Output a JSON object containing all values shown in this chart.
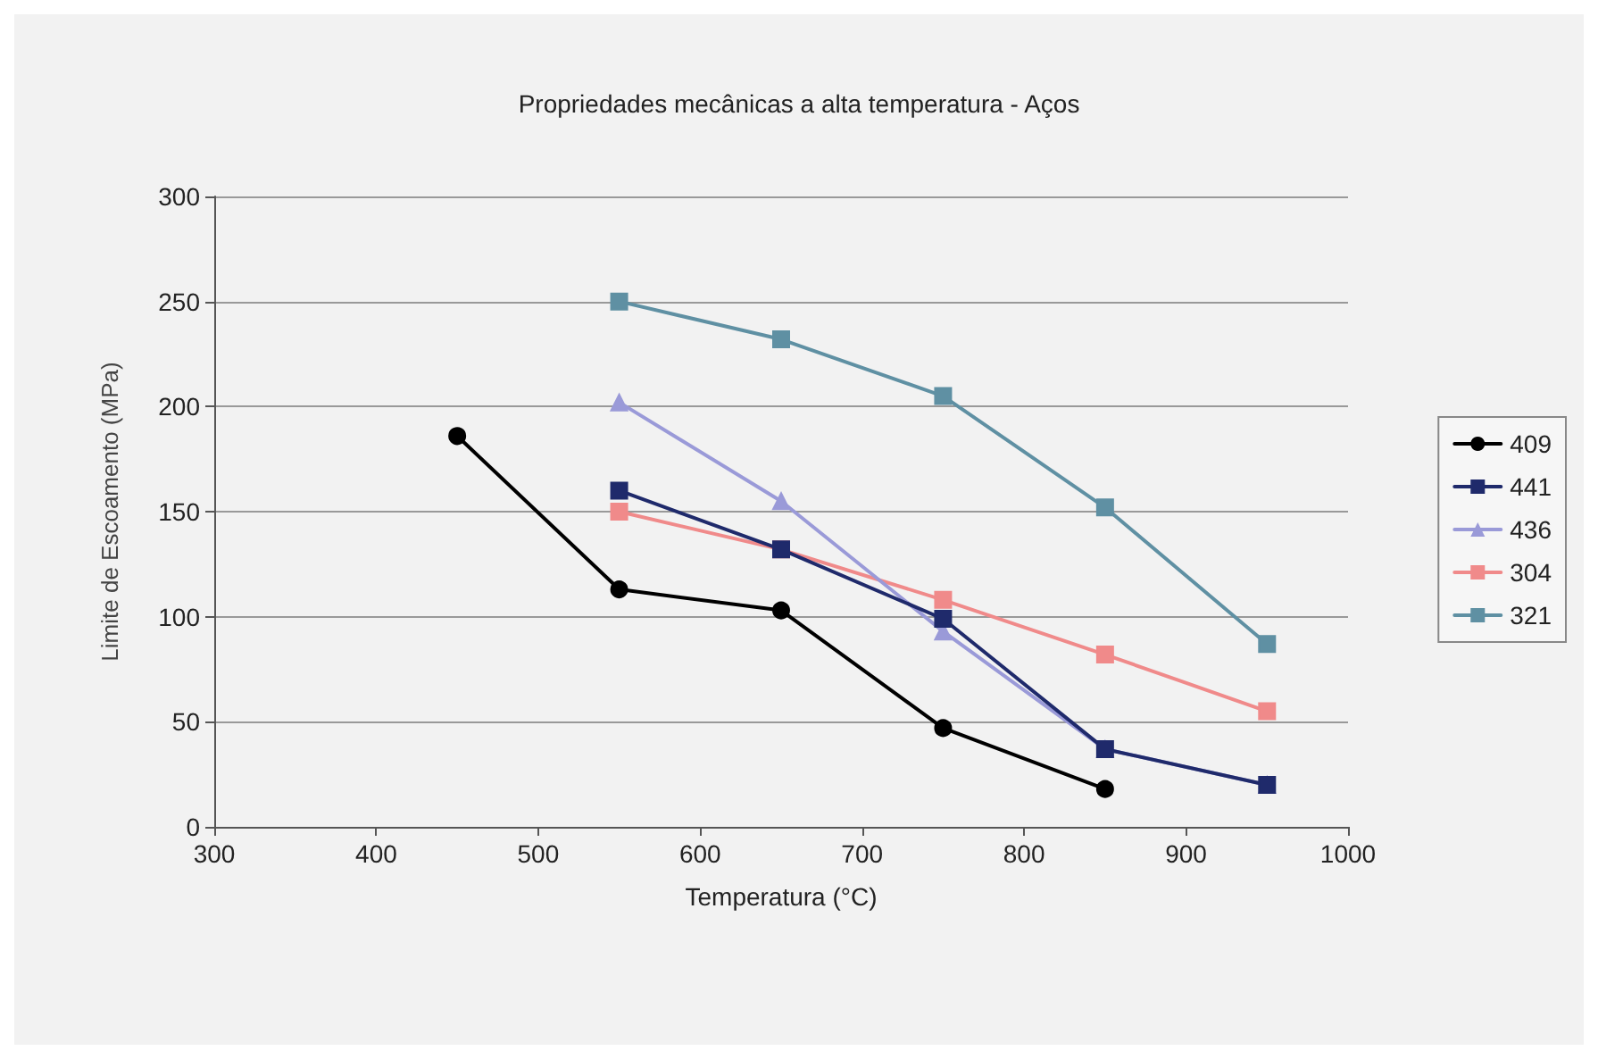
{
  "chart_data": {
    "type": "line",
    "title": "Propriedades mecânicas a alta temperatura - Aços",
    "xlabel": "Temperatura (°C)",
    "ylabel": "Limite de Escoamento (MPa)",
    "x": [
      450,
      550,
      650,
      750,
      850,
      950
    ],
    "series": [
      {
        "name": "409",
        "color": "#000000",
        "marker": "circle",
        "values": [
          186,
          113,
          103,
          47,
          18,
          null
        ]
      },
      {
        "name": "441",
        "color": "#1f2a6b",
        "marker": "square",
        "values": [
          null,
          160,
          132,
          99,
          37,
          20
        ]
      },
      {
        "name": "436",
        "color": "#9a9ad8",
        "marker": "triangle",
        "values": [
          null,
          202,
          155,
          93,
          37,
          20
        ]
      },
      {
        "name": "304",
        "color": "#f08a8a",
        "marker": "square",
        "values": [
          null,
          150,
          132,
          108,
          82,
          55
        ]
      },
      {
        "name": "321",
        "color": "#5f90a3",
        "marker": "square",
        "values": [
          null,
          250,
          232,
          205,
          152,
          87
        ]
      }
    ],
    "xlim": [
      300,
      1000
    ],
    "xticks": [
      300,
      400,
      500,
      600,
      700,
      800,
      900,
      1000
    ],
    "ylim": [
      0,
      300
    ],
    "yticks": [
      0,
      50,
      100,
      150,
      200,
      250,
      300
    ],
    "grid": "y",
    "legend": "right",
    "line_style": "solid"
  }
}
